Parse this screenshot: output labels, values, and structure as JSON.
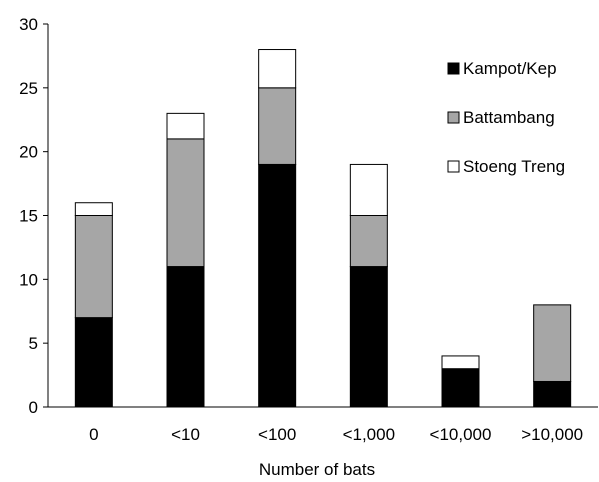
{
  "chart_data": {
    "type": "bar",
    "stacked": true,
    "categories": [
      "0",
      "<10",
      "<100",
      "<1,000",
      "<10,000",
      ">10,000"
    ],
    "series": [
      {
        "name": "Kampot/Kep",
        "values": [
          7,
          11,
          19,
          11,
          3,
          2
        ],
        "color": "#000000"
      },
      {
        "name": "Battambang",
        "values": [
          8,
          10,
          6,
          4,
          0,
          6
        ],
        "color": "#a6a6a6"
      },
      {
        "name": "Stoeng Treng",
        "values": [
          1,
          2,
          3,
          4,
          1,
          0
        ],
        "color": "#ffffff"
      }
    ],
    "title": "",
    "xlabel": "Number of bats",
    "ylabel": "",
    "ylim": [
      0,
      30
    ],
    "yticks": [
      "0",
      "5",
      "10",
      "15",
      "20",
      "25",
      "30"
    ],
    "grid": false,
    "legend_position": "top-right"
  }
}
